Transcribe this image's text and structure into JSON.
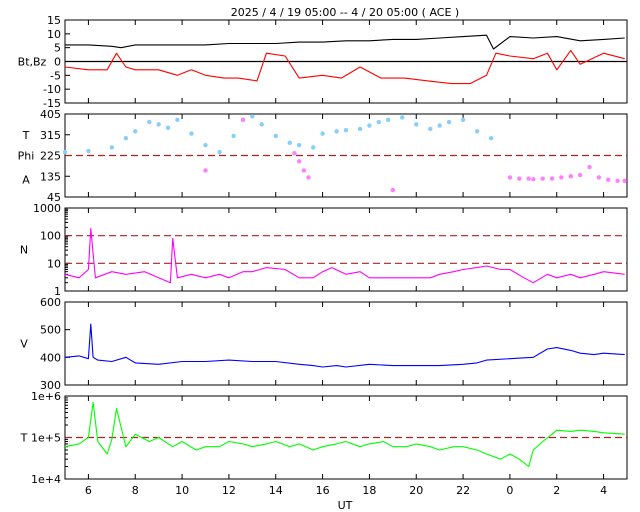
{
  "title": "2025 /  4 / 19   05:00 -- 4 / 20   05:00 ( ACE )",
  "x_axis": {
    "label": "UT",
    "range_hours": [
      5,
      29
    ],
    "ticks": [
      {
        "h": 6,
        "label": "6"
      },
      {
        "h": 8,
        "label": "8"
      },
      {
        "h": 10,
        "label": "10"
      },
      {
        "h": 12,
        "label": "12"
      },
      {
        "h": 14,
        "label": "14"
      },
      {
        "h": 16,
        "label": "16"
      },
      {
        "h": 18,
        "label": "18"
      },
      {
        "h": 20,
        "label": "20"
      },
      {
        "h": 22,
        "label": "22"
      },
      {
        "h": 24,
        "label": "0"
      },
      {
        "h": 26,
        "label": "2"
      },
      {
        "h": 28,
        "label": "4"
      }
    ],
    "data_end_hour": 28.9
  },
  "chart_data": [
    {
      "id": "mag",
      "type": "line",
      "ylabel": "Bt,Bz",
      "scale": "linear",
      "ylim": [
        -15,
        15
      ],
      "yticks": [
        {
          "v": 15,
          "label": "15"
        },
        {
          "v": 10,
          "label": "10"
        },
        {
          "v": 5,
          "label": "5"
        },
        {
          "v": 0,
          "label": "0"
        },
        {
          "v": -5,
          "label": "-5"
        },
        {
          "v": -10,
          "label": "-10"
        },
        {
          "v": -15,
          "label": "-15"
        }
      ],
      "reference_lines": [
        {
          "v": 0,
          "style": "solid",
          "color": "#000000"
        }
      ],
      "series": [
        {
          "key": "Bt",
          "color": "#000000",
          "x": [
            5.0,
            6.0,
            7.0,
            7.4,
            8.0,
            9.0,
            10.0,
            11.0,
            12.0,
            13.0,
            14.0,
            15.0,
            16.0,
            17.0,
            18.0,
            19.0,
            20.0,
            21.0,
            22.0,
            23.0,
            23.3,
            24.0,
            25.0,
            26.0,
            27.0,
            28.0,
            28.9
          ],
          "y": [
            6,
            6,
            5.5,
            5,
            6,
            6,
            6,
            6,
            6.5,
            6.5,
            6.5,
            7,
            7,
            7.5,
            7.5,
            8,
            8,
            8.5,
            9,
            9.5,
            4.5,
            9,
            8.5,
            9,
            7.5,
            8,
            8.5
          ]
        },
        {
          "key": "Bz",
          "color": "#ff0000",
          "x": [
            5.0,
            6.0,
            6.8,
            7.2,
            7.6,
            8.0,
            9.0,
            9.8,
            10.4,
            11.0,
            11.8,
            12.4,
            13.2,
            13.6,
            14.4,
            15.0,
            16.0,
            16.8,
            17.6,
            18.5,
            19.5,
            20.5,
            21.5,
            22.3,
            23.0,
            23.4,
            24.0,
            25.0,
            25.6,
            26.0,
            26.6,
            27.0,
            28.0,
            28.9
          ],
          "y": [
            -2,
            -3,
            -3,
            3,
            -2,
            -3,
            -3,
            -5,
            -3,
            -5,
            -6,
            -6,
            -7,
            3,
            2,
            -6,
            -5,
            -6,
            -2,
            -6,
            -6,
            -7,
            -8,
            -8,
            -5,
            3,
            2,
            1,
            3,
            -3,
            4,
            -1,
            3,
            1
          ]
        }
      ]
    },
    {
      "id": "angles",
      "type": "scatter",
      "ylabel": "T\nPhi\nA",
      "ylabel_lines": [
        {
          "text": "T",
          "v": 315
        },
        {
          "text": "Phi",
          "v": 225
        },
        {
          "text": "A",
          "v": 120
        }
      ],
      "scale": "linear",
      "ylim": [
        45,
        405
      ],
      "yticks": [
        {
          "v": 405,
          "label": "405"
        },
        {
          "v": 315,
          "label": "315"
        },
        {
          "v": 225,
          "label": "225"
        },
        {
          "v": 135,
          "label": "135"
        },
        {
          "v": 45,
          "label": "45"
        }
      ],
      "reference_lines": [
        {
          "v": 225,
          "style": "dashed",
          "color": "#aa2222"
        }
      ],
      "series": [
        {
          "key": "Phi",
          "color": "#87cefa",
          "x": [
            5.0,
            6.0,
            7.0,
            7.6,
            8.0,
            8.6,
            9.0,
            9.4,
            9.8,
            10.4,
            11.0,
            11.6,
            12.2,
            12.6,
            13.0,
            13.4,
            14.0,
            14.6,
            15.0,
            15.6,
            16.0,
            16.6,
            17.0,
            17.6,
            18.0,
            18.4,
            18.8,
            19.4,
            20.0,
            20.6,
            21.0,
            21.4,
            22.0,
            22.6,
            23.2
          ],
          "y": [
            240,
            245,
            260,
            300,
            330,
            370,
            360,
            345,
            380,
            320,
            270,
            240,
            310,
            380,
            395,
            360,
            310,
            280,
            270,
            260,
            320,
            330,
            335,
            340,
            355,
            370,
            380,
            390,
            360,
            340,
            355,
            370,
            380,
            330,
            300
          ]
        },
        {
          "key": "Phi-low",
          "color": "#ff80ff",
          "x": [
            11.0,
            12.6,
            14.8,
            15.0,
            15.2,
            15.4,
            19.0,
            24.0,
            24.4,
            24.8,
            25.0,
            25.4,
            25.8,
            26.2,
            26.6,
            27.0,
            27.4,
            27.8,
            28.2,
            28.6,
            28.9
          ],
          "y": [
            160,
            380,
            235,
            200,
            160,
            130,
            75,
            130,
            125,
            125,
            122,
            125,
            125,
            130,
            135,
            140,
            175,
            130,
            120,
            115,
            115
          ]
        }
      ]
    },
    {
      "id": "density",
      "type": "line",
      "ylabel": "N",
      "scale": "log",
      "ylim": [
        1,
        1000
      ],
      "yticks": [
        {
          "v": 1000,
          "label": "1000"
        },
        {
          "v": 100,
          "label": "100"
        },
        {
          "v": 10,
          "label": "10"
        },
        {
          "v": 1,
          "label": "1"
        }
      ],
      "reference_lines": [
        {
          "v": 100,
          "style": "dashed",
          "color": "#aa2222"
        },
        {
          "v": 10,
          "style": "dashed",
          "color": "#aa2222"
        }
      ],
      "series": [
        {
          "key": "N",
          "color": "#ff00ff",
          "x": [
            5.0,
            5.6,
            6.0,
            6.1,
            6.3,
            7.0,
            7.6,
            8.4,
            9.0,
            9.5,
            9.6,
            9.8,
            10.4,
            11.0,
            11.6,
            12.0,
            12.6,
            13.0,
            13.6,
            14.4,
            15.0,
            15.6,
            16.0,
            16.4,
            17.0,
            17.6,
            18.0,
            18.6,
            19.4,
            20.0,
            20.6,
            21.0,
            21.6,
            22.0,
            22.6,
            23.0,
            23.6,
            24.0,
            24.6,
            25.0,
            25.6,
            26.0,
            26.6,
            27.0,
            27.6,
            28.0,
            28.9
          ],
          "y": [
            4,
            3,
            6,
            180,
            3,
            5,
            4,
            5,
            3,
            2,
            80,
            3,
            4,
            3,
            4,
            3,
            5,
            5,
            7,
            6,
            3,
            3,
            5,
            7,
            4,
            5,
            3,
            3,
            3,
            3,
            3,
            4,
            5,
            6,
            7,
            8,
            6,
            6,
            3,
            2,
            4,
            3,
            4,
            3,
            4,
            5,
            4
          ]
        }
      ]
    },
    {
      "id": "speed",
      "type": "line",
      "ylabel": "V",
      "scale": "linear",
      "ylim": [
        300,
        600
      ],
      "yticks": [
        {
          "v": 600,
          "label": "600"
        },
        {
          "v": 500,
          "label": "500"
        },
        {
          "v": 400,
          "label": "400"
        },
        {
          "v": 300,
          "label": "300"
        }
      ],
      "reference_lines": [],
      "series": [
        {
          "key": "V",
          "color": "#0000ff",
          "x": [
            5.0,
            5.6,
            6.0,
            6.1,
            6.2,
            6.4,
            7.0,
            7.6,
            8.0,
            9.0,
            10.0,
            11.0,
            12.0,
            13.0,
            14.0,
            15.0,
            15.6,
            16.0,
            16.6,
            17.0,
            18.0,
            19.0,
            20.0,
            21.0,
            22.0,
            22.6,
            23.0,
            24.0,
            25.0,
            25.6,
            26.0,
            26.6,
            27.0,
            27.6,
            28.0,
            28.9
          ],
          "y": [
            400,
            405,
            395,
            520,
            400,
            390,
            385,
            400,
            380,
            375,
            385,
            385,
            390,
            385,
            385,
            375,
            370,
            365,
            370,
            365,
            375,
            370,
            370,
            370,
            375,
            380,
            390,
            395,
            400,
            430,
            435,
            425,
            415,
            410,
            415,
            410
          ]
        }
      ]
    },
    {
      "id": "temperature",
      "type": "line",
      "ylabel": "T",
      "scale": "log",
      "ylim": [
        10000,
        1000000
      ],
      "yticks": [
        {
          "v": 1000000,
          "label": "1e+6"
        },
        {
          "v": 100000,
          "label": "1e+5"
        },
        {
          "v": 10000,
          "label": "1e+4"
        }
      ],
      "reference_lines": [
        {
          "v": 100000,
          "style": "dashed",
          "color": "#aa2222"
        }
      ],
      "series": [
        {
          "key": "T",
          "color": "#00ff00",
          "x": [
            5.0,
            5.6,
            6.0,
            6.2,
            6.4,
            6.8,
            7.0,
            7.2,
            7.6,
            8.0,
            8.6,
            9.0,
            9.6,
            10.0,
            10.6,
            11.0,
            11.6,
            12.0,
            12.6,
            13.0,
            13.6,
            14.0,
            14.6,
            15.0,
            15.6,
            16.0,
            16.6,
            17.0,
            17.6,
            18.0,
            18.6,
            19.0,
            19.6,
            20.0,
            20.6,
            21.0,
            21.6,
            22.0,
            22.6,
            23.0,
            23.6,
            24.0,
            24.4,
            24.8,
            25.0,
            25.4,
            25.8,
            26.0,
            26.6,
            27.0,
            27.6,
            28.0,
            28.9
          ],
          "y": [
            60000,
            70000,
            100000,
            700000,
            80000,
            40000,
            90000,
            500000,
            60000,
            120000,
            80000,
            100000,
            60000,
            80000,
            50000,
            60000,
            60000,
            80000,
            70000,
            60000,
            70000,
            80000,
            60000,
            70000,
            50000,
            60000,
            70000,
            80000,
            60000,
            70000,
            80000,
            60000,
            60000,
            70000,
            60000,
            50000,
            60000,
            60000,
            50000,
            40000,
            30000,
            40000,
            30000,
            20000,
            50000,
            80000,
            120000,
            150000,
            140000,
            150000,
            140000,
            130000,
            120000
          ]
        }
      ]
    }
  ]
}
